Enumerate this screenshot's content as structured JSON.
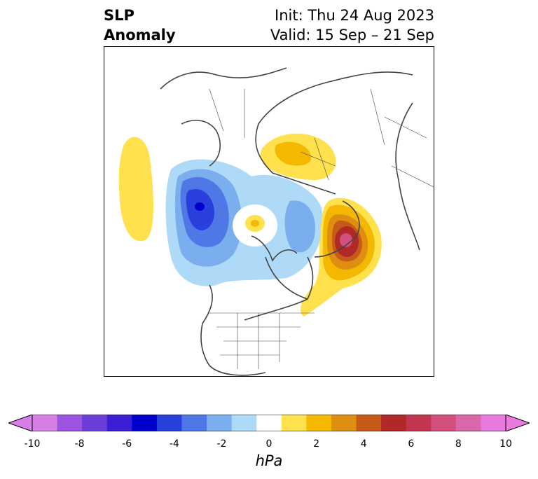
{
  "title": {
    "left_line1": "SLP",
    "left_line2": "Anomaly",
    "right_line1": "Init: Thu 24 Aug 2023",
    "right_line2": "Valid: 15 Sep – 21 Sep"
  },
  "colorbar": {
    "unit": "hPa",
    "tick_labels": [
      "-10",
      "-8",
      "-6",
      "-4",
      "-2",
      "0",
      "2",
      "4",
      "6",
      "8",
      "10"
    ],
    "colors": [
      "#d67ee6",
      "#9b55e0",
      "#6b3dd9",
      "#3a1fd6",
      "#0000cc",
      "#2a40dc",
      "#4f78e6",
      "#7aaeee",
      "#aedaf7",
      "#ffffff",
      "#ffe04d",
      "#f5b800",
      "#de8e10",
      "#c85a18",
      "#b02828",
      "#c43550",
      "#d24f7e",
      "#da68aa",
      "#e879de"
    ],
    "over_color": "#e879de",
    "under_color": "#d67ee6"
  },
  "map_features": {
    "negative_anomaly_center_color": "#0000cc",
    "positive_anomaly_center_color": "#d24f7e"
  }
}
